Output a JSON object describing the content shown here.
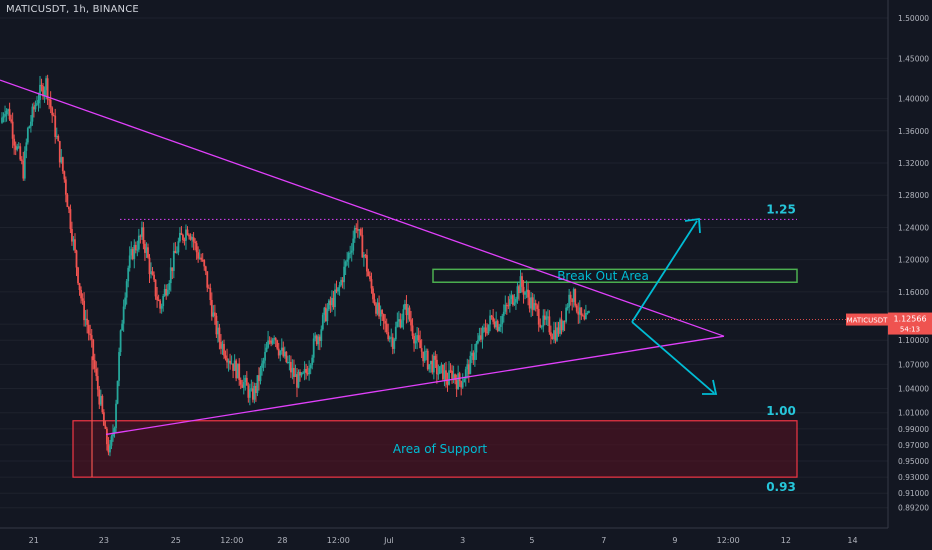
{
  "header": {
    "title": "MATICUSDT, 1h, BINANCE"
  },
  "chart_data": {
    "type": "candlestick",
    "symbol": "MATICUSDT",
    "timeframe": "1h",
    "exchange": "BINANCE",
    "ylim": [
      0.8892,
      1.51
    ],
    "y_ticks": [
      "1.50000",
      "1.45000",
      "1.40000",
      "1.36000",
      "1.32000",
      "1.28000",
      "1.24000",
      "1.20000",
      "1.16000",
      "1.12000",
      "1.10000",
      "1.07000",
      "1.04000",
      "1.01000",
      "0.99000",
      "0.97000",
      "0.95000",
      "0.93000",
      "0.91000",
      "0.89200"
    ],
    "x_ticks": [
      "21",
      "23",
      "25",
      "12:00",
      "28",
      "12:00",
      "Jul",
      "3",
      "5",
      "7",
      "9",
      "12:00",
      "12",
      "14"
    ],
    "price_tag": {
      "symbol": "MATICUSDT",
      "price": "1.12566",
      "countdown": "54:13",
      "value": 1.12566
    },
    "series_closes": [
      1.37,
      1.39,
      1.38,
      1.35,
      1.33,
      1.31,
      1.36,
      1.38,
      1.4,
      1.41,
      1.42,
      1.39,
      1.36,
      1.33,
      1.3,
      1.26,
      1.22,
      1.18,
      1.14,
      1.12,
      1.09,
      1.05,
      1.02,
      0.98,
      0.96,
      1.0,
      1.08,
      1.15,
      1.19,
      1.21,
      1.22,
      1.23,
      1.21,
      1.18,
      1.16,
      1.14,
      1.16,
      1.18,
      1.2,
      1.22,
      1.23,
      1.24,
      1.23,
      1.21,
      1.2,
      1.18,
      1.15,
      1.12,
      1.1,
      1.09,
      1.08,
      1.07,
      1.06,
      1.05,
      1.04,
      1.03,
      1.04,
      1.06,
      1.08,
      1.1,
      1.11,
      1.09,
      1.08,
      1.07,
      1.06,
      1.05,
      1.05,
      1.06,
      1.08,
      1.1,
      1.11,
      1.13,
      1.14,
      1.15,
      1.16,
      1.18,
      1.2,
      1.22,
      1.245,
      1.22,
      1.2,
      1.17,
      1.15,
      1.13,
      1.12,
      1.11,
      1.1,
      1.12,
      1.13,
      1.14,
      1.12,
      1.1,
      1.09,
      1.08,
      1.07,
      1.07,
      1.06,
      1.06,
      1.05,
      1.06,
      1.05,
      1.05,
      1.06,
      1.07,
      1.09,
      1.1,
      1.11,
      1.12,
      1.13,
      1.12,
      1.13,
      1.14,
      1.15,
      1.16,
      1.17,
      1.16,
      1.15,
      1.14,
      1.13,
      1.12,
      1.12,
      1.11,
      1.11,
      1.12,
      1.14,
      1.16,
      1.15,
      1.13,
      1.12,
      1.13
    ]
  },
  "annotations": {
    "level_125": "1.25",
    "level_100": "1.00",
    "level_093": "0.93",
    "breakout_label": "Break Out Area",
    "support_label": "Area of Support"
  },
  "colors": {
    "background": "#131722",
    "up": "#26a69a",
    "down": "#ef5350",
    "trendline": "#e040fb",
    "support_border": "#f23645",
    "support_fill": "#5a1020",
    "breakout_border": "#4caf50",
    "label": "#00bcd4",
    "level_text": "#26c6da"
  }
}
